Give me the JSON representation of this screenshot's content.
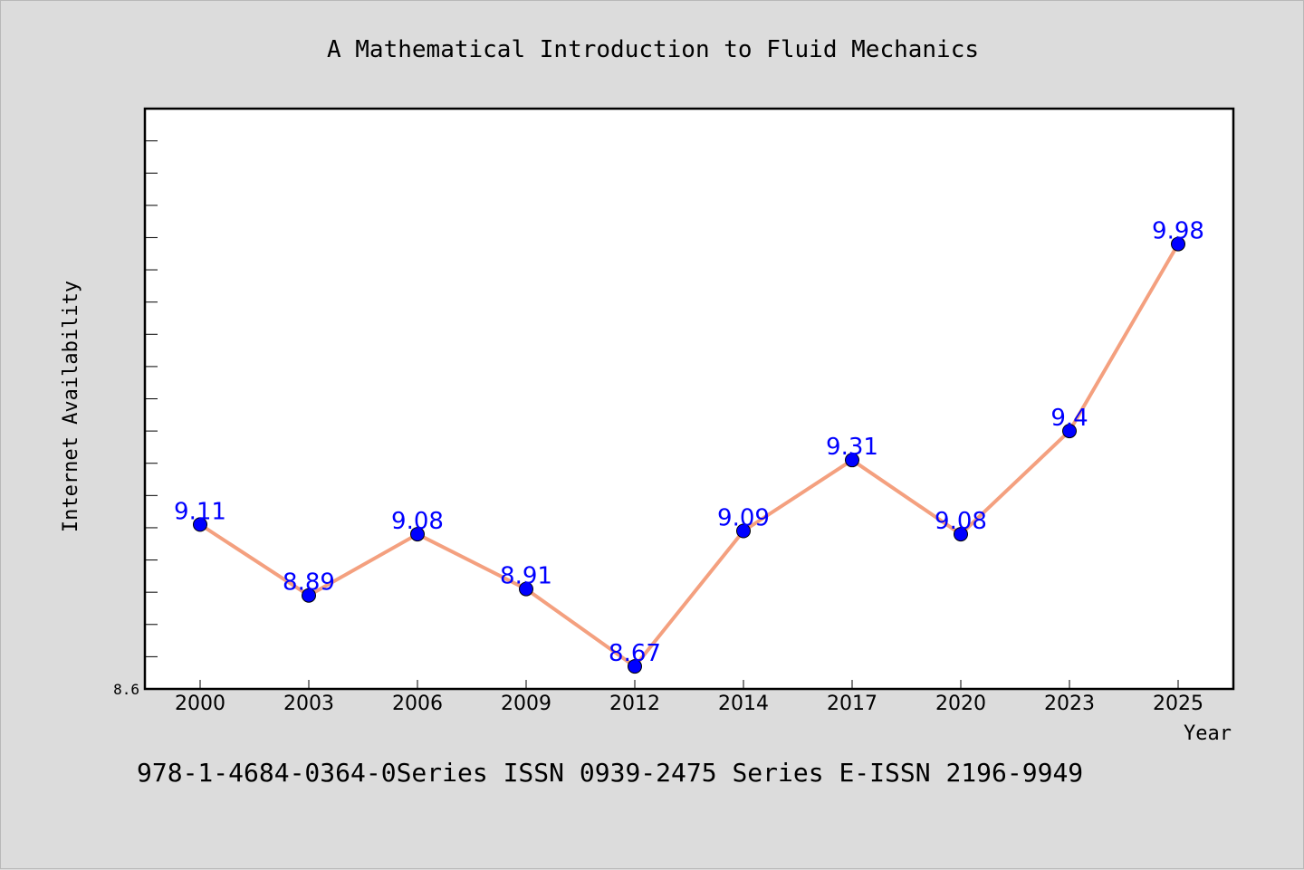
{
  "chart_data": {
    "type": "line",
    "title": "A Mathematical Introduction to Fluid Mechanics",
    "xlabel": "Year",
    "ylabel": "Internet Availability",
    "categories": [
      "2000",
      "2003",
      "2006",
      "2009",
      "2012",
      "2014",
      "2017",
      "2020",
      "2023",
      "2025"
    ],
    "values": [
      9.11,
      8.89,
      9.08,
      8.91,
      8.67,
      9.09,
      9.31,
      9.08,
      9.4,
      9.98
    ],
    "data_labels": [
      "9.11",
      "8.89",
      "9.08",
      "8.91",
      "8.67",
      "9.09",
      "9.31",
      "9.08",
      "9.4",
      "9.98"
    ],
    "ylim": [
      8.6,
      10.4
    ],
    "y_tick_labels": [
      "8.6"
    ],
    "grid": false,
    "legend": "none",
    "line_color": "#f4a07f",
    "marker_color": "#0000ff",
    "label_color": "#0000ff"
  },
  "footer": {
    "text": "978-1-4684-0364-0Series ISSN 0939-2475 Series E-ISSN 2196-9949"
  }
}
